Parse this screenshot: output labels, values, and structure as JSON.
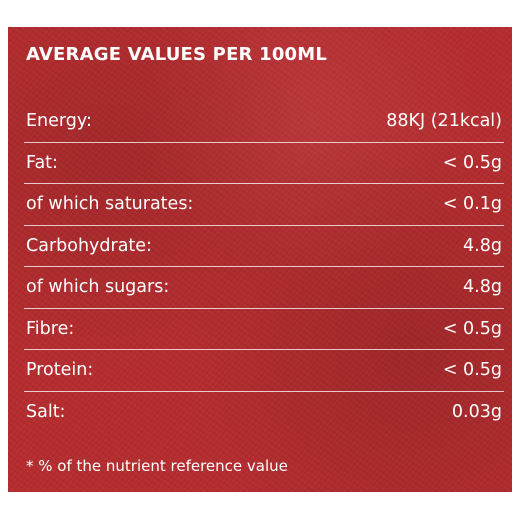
{
  "panel": {
    "heading": "AVERAGE VALUES PER 100ML",
    "colors": {
      "background": "#b62d30",
      "text": "#ffffff"
    }
  },
  "nutrients": [
    {
      "label": "Energy:",
      "value": "88KJ (21kcal)"
    },
    {
      "label": "Fat:",
      "value": "< 0.5g"
    },
    {
      "label": "of which saturates:",
      "value": "< 0.1g"
    },
    {
      "label": "Carbohydrate:",
      "value": "4.8g"
    },
    {
      "label": "of which sugars:",
      "value": "4.8g"
    },
    {
      "label": "Fibre:",
      "value": "< 0.5g"
    },
    {
      "label": "Protein:",
      "value": "< 0.5g"
    },
    {
      "label": "Salt:",
      "value": "0.03g"
    }
  ],
  "footnote": "* % of the nutrient reference value"
}
